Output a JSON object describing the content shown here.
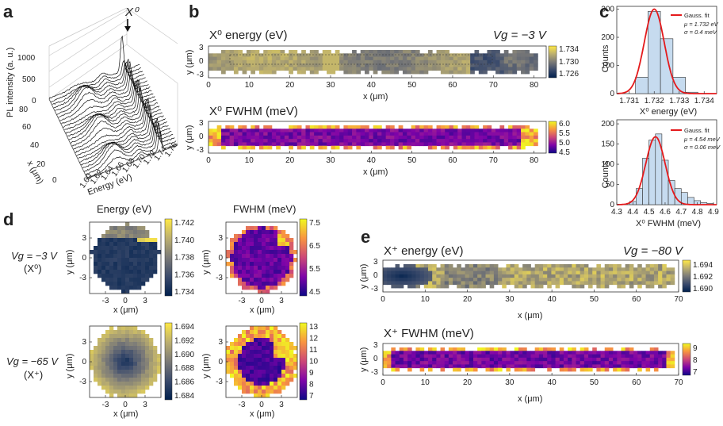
{
  "panel_labels": {
    "a": "a",
    "b": "b",
    "c": "c",
    "d": "d",
    "e": "e"
  },
  "colors": {
    "cividis_low": "#00204d",
    "cividis_high": "#ffe945",
    "plasma_low": "#0d0887",
    "plasma_mid": "#cc4778",
    "plasma_high": "#f0f921",
    "fit": "#e41a1c",
    "hist": "#c6dbef"
  },
  "a": {
    "peak_label": "X⁰",
    "zlabel": "PL intensity (a. u.)",
    "z_ticks": [
      "0",
      "500",
      "1000"
    ],
    "x_label": "x (μm)",
    "x_ticks": [
      "0",
      "20",
      "40",
      "60",
      "80"
    ],
    "energy_label": "Energy (eV)",
    "energy_ticks": [
      "1.60",
      "1.62",
      "1.64",
      "1.66",
      "1.68",
      "1.70",
      "1.72",
      "1.74",
      "1.76"
    ]
  },
  "b": {
    "map1": {
      "title": "X⁰ energy  (eV)",
      "cbar_ticks": [
        "1.734",
        "1.730",
        "1.726"
      ],
      "cmap": "cividis"
    },
    "map2": {
      "title": "X⁰ FWHM (meV)",
      "cbar_ticks": [
        "6.0",
        "5.5",
        "5.0",
        "4.5"
      ],
      "cmap": "plasma"
    },
    "gate": "Vg = −3 V",
    "xlabel": "x (μm)",
    "ylabel": "y (μm)",
    "x_ticks": [
      "0",
      "10",
      "20",
      "30",
      "40",
      "50",
      "60",
      "70",
      "80"
    ],
    "y_ticks": [
      "3",
      "0",
      "-3"
    ]
  },
  "c": {
    "top": {
      "xlabel": "X⁰ energy (eV)",
      "ylabel": "Counts",
      "x_ticks": [
        "1.731",
        "1.732",
        "1.733",
        "1.734"
      ],
      "y_ticks": [
        "0",
        "100",
        "200",
        "300"
      ],
      "legend_fit": "Gauss. fit",
      "mu": "μ = 1.732 eV",
      "sigma": "σ = 0.4 meV"
    },
    "bottom": {
      "xlabel": "X⁰ FWHM (meV)",
      "ylabel": "Counts",
      "x_ticks": [
        "4.3",
        "4.4",
        "4.5",
        "4.6",
        "4.7",
        "4.8",
        "4.9"
      ],
      "y_ticks": [
        "0",
        "50",
        "100",
        "150",
        "200"
      ],
      "legend_fit": "Gauss. fit",
      "mu": "μ = 4.54 meV",
      "sigma": "σ = 0.06 meV"
    }
  },
  "d": {
    "col1_title": "Energy (eV)",
    "col2_title": "FWHM (meV)",
    "row1_gate": "Vg = −3 V",
    "row1_state": "(X⁰)",
    "row2_gate": "Vg = −65 V",
    "row2_state": "(X⁺)",
    "xlabel": "x (μm)",
    "ylabel": "y (μm)",
    "ticks": [
      "-3",
      "0",
      "3"
    ],
    "cbar_e1": [
      "1.742",
      "1.740",
      "1.738",
      "1.736",
      "1.734"
    ],
    "cbar_f1": [
      "7.5",
      "6.5",
      "5.5",
      "4.5"
    ],
    "cbar_e2": [
      "1.694",
      "1.692",
      "1.690",
      "1.688",
      "1.686",
      "1.684"
    ],
    "cbar_f2": [
      "13",
      "12",
      "11",
      "10",
      "9",
      "8",
      "7"
    ]
  },
  "e": {
    "map1": {
      "title": "X⁺ energy (eV)",
      "cbar_ticks": [
        "1.694",
        "1.692",
        "1.690"
      ],
      "cmap": "cividis"
    },
    "map2": {
      "title": "X⁺ FWHM (meV)",
      "cbar_ticks": [
        "9",
        "8",
        "7"
      ],
      "cmap": "plasma"
    },
    "gate": "Vg = −80 V",
    "xlabel": "x (μm)",
    "ylabel": "y (μm)",
    "x_ticks": [
      "0",
      "10",
      "20",
      "30",
      "40",
      "50",
      "60",
      "70"
    ],
    "y_ticks": [
      "3",
      "0",
      "-3"
    ]
  },
  "chart_data": [
    {
      "type": "bar",
      "panel": "c-top",
      "xlabel": "X⁰ energy (eV)",
      "ylabel": "Counts",
      "xlim": [
        1.7305,
        1.7345
      ],
      "ylim": [
        0,
        310
      ],
      "bins": [
        1.7315,
        1.732,
        1.7325,
        1.733,
        1.7335
      ],
      "bin_width": 0.0005,
      "values": [
        58,
        292,
        195,
        58,
        5
      ],
      "fit": {
        "name": "Gauss. fit",
        "mu": 1.732,
        "sigma": 0.0004,
        "amplitude": 300
      }
    },
    {
      "type": "bar",
      "panel": "c-bottom",
      "xlabel": "X⁰ FWHM (meV)",
      "ylabel": "Counts",
      "xlim": [
        4.3,
        4.92
      ],
      "ylim": [
        0,
        210
      ],
      "bins": [
        4.4,
        4.44,
        4.48,
        4.52,
        4.56,
        4.6,
        4.64,
        4.68,
        4.72,
        4.76,
        4.8,
        4.84,
        4.88
      ],
      "bin_width": 0.04,
      "values": [
        8,
        40,
        115,
        160,
        175,
        110,
        60,
        40,
        30,
        18,
        10,
        5,
        3
      ],
      "fit": {
        "name": "Gauss. fit",
        "mu": 4.54,
        "sigma": 0.06,
        "amplitude": 168
      }
    }
  ]
}
